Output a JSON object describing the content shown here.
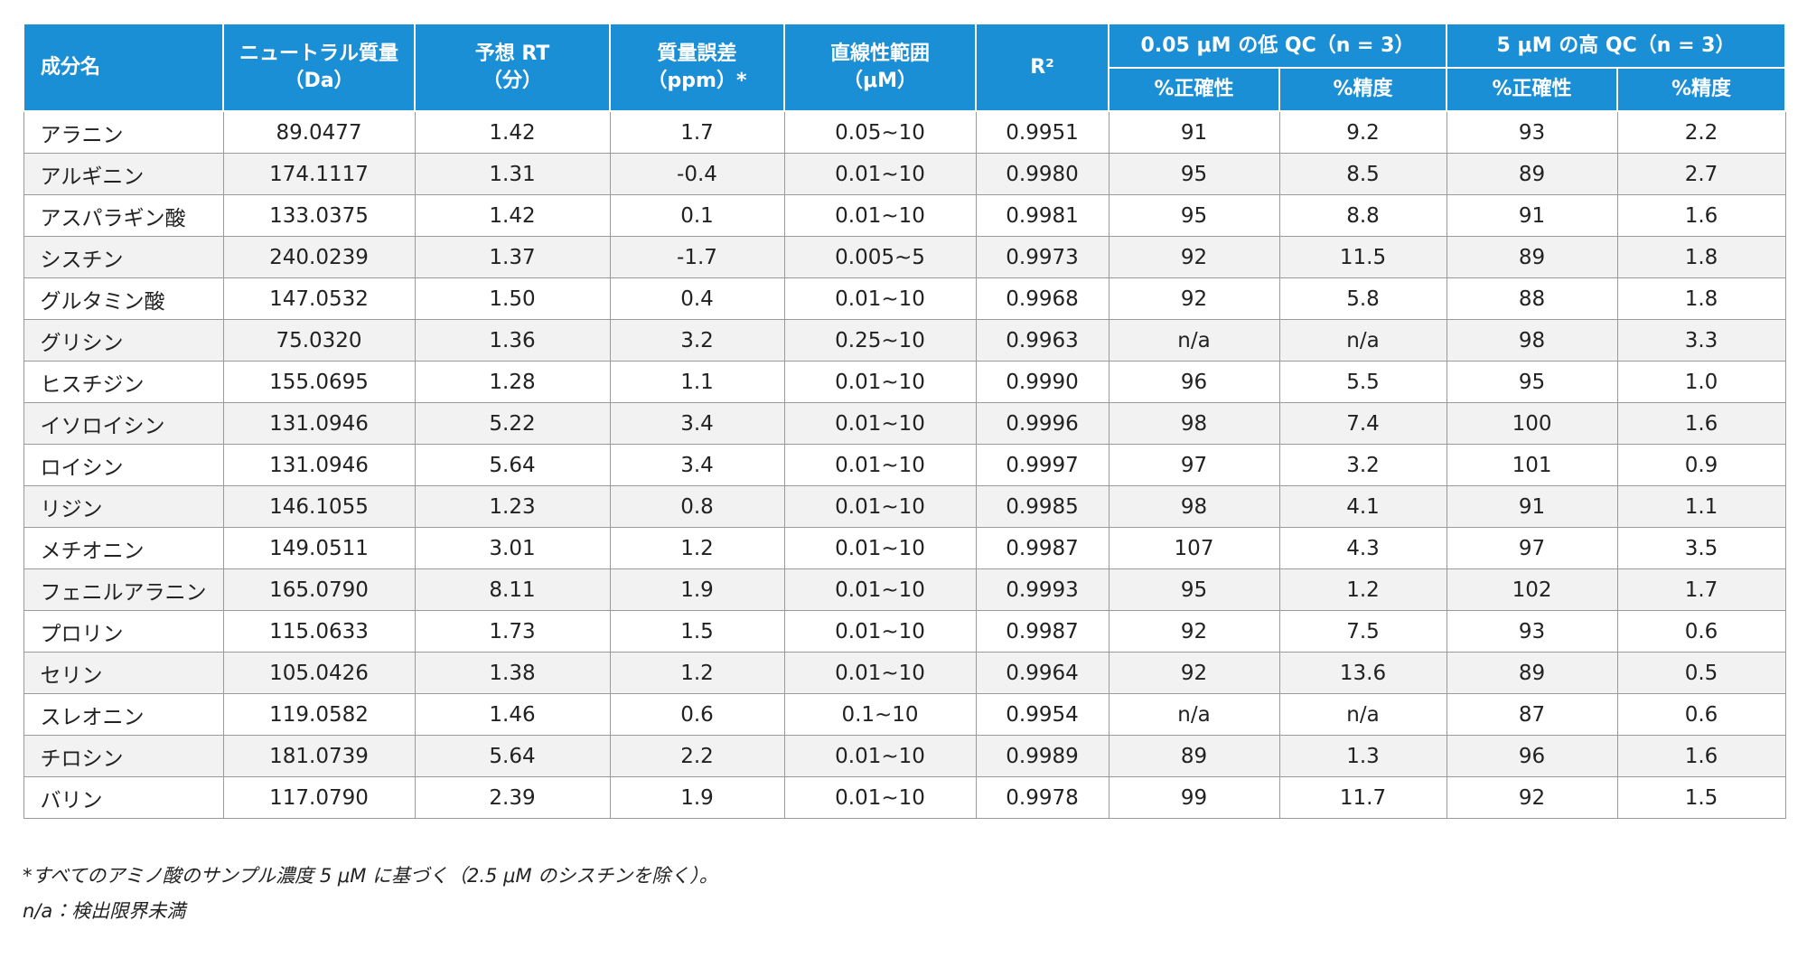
{
  "table": {
    "header": {
      "columns": [
        {
          "lines": [
            "成分名"
          ]
        },
        {
          "lines": [
            "ニュートラル質量",
            "（Da）"
          ]
        },
        {
          "lines": [
            "予想 RT",
            "（分）"
          ]
        },
        {
          "lines": [
            "質量誤差",
            "（ppm）*"
          ]
        },
        {
          "lines": [
            "直線性範囲",
            "（μM）"
          ]
        },
        {
          "lines": [
            "R²"
          ]
        },
        {
          "lines": [
            "0.05 μM の低 QC（n = 3）"
          ]
        },
        {
          "lines": [
            "5 μM の高 QC（n = 3）"
          ]
        }
      ],
      "subcolumns": [
        "%正確性",
        "%精度",
        "%正確性",
        "%精度"
      ]
    },
    "rows": [
      [
        "アラニン",
        "89.0477",
        "1.42",
        "1.7",
        "0.05~10",
        "0.9951",
        "91",
        "9.2",
        "93",
        "2.2"
      ],
      [
        "アルギニン",
        "174.1117",
        "1.31",
        "-0.4",
        "0.01~10",
        "0.9980",
        "95",
        "8.5",
        "89",
        "2.7"
      ],
      [
        "アスパラギン酸",
        "133.0375",
        "1.42",
        "0.1",
        "0.01~10",
        "0.9981",
        "95",
        "8.8",
        "91",
        "1.6"
      ],
      [
        "シスチン",
        "240.0239",
        "1.37",
        "-1.7",
        "0.005~5",
        "0.9973",
        "92",
        "11.5",
        "89",
        "1.8"
      ],
      [
        "グルタミン酸",
        "147.0532",
        "1.50",
        "0.4",
        "0.01~10",
        "0.9968",
        "92",
        "5.8",
        "88",
        "1.8"
      ],
      [
        "グリシン",
        "75.0320",
        "1.36",
        "3.2",
        "0.25~10",
        "0.9963",
        "n/a",
        "n/a",
        "98",
        "3.3"
      ],
      [
        "ヒスチジン",
        "155.0695",
        "1.28",
        "1.1",
        "0.01~10",
        "0.9990",
        "96",
        "5.5",
        "95",
        "1.0"
      ],
      [
        "イソロイシン",
        "131.0946",
        "5.22",
        "3.4",
        "0.01~10",
        "0.9996",
        "98",
        "7.4",
        "100",
        "1.6"
      ],
      [
        "ロイシン",
        "131.0946",
        "5.64",
        "3.4",
        "0.01~10",
        "0.9997",
        "97",
        "3.2",
        "101",
        "0.9"
      ],
      [
        "リジン",
        "146.1055",
        "1.23",
        "0.8",
        "0.01~10",
        "0.9985",
        "98",
        "4.1",
        "91",
        "1.1"
      ],
      [
        "メチオニン",
        "149.0511",
        "3.01",
        "1.2",
        "0.01~10",
        "0.9987",
        "107",
        "4.3",
        "97",
        "3.5"
      ],
      [
        "フェニルアラニン",
        "165.0790",
        "8.11",
        "1.9",
        "0.01~10",
        "0.9993",
        "95",
        "1.2",
        "102",
        "1.7"
      ],
      [
        "プロリン",
        "115.0633",
        "1.73",
        "1.5",
        "0.01~10",
        "0.9987",
        "92",
        "7.5",
        "93",
        "0.6"
      ],
      [
        "セリン",
        "105.0426",
        "1.38",
        "1.2",
        "0.01~10",
        "0.9964",
        "92",
        "13.6",
        "89",
        "0.5"
      ],
      [
        "スレオニン",
        "119.0582",
        "1.46",
        "0.6",
        "0.1~10",
        "0.9954",
        "n/a",
        "n/a",
        "87",
        "0.6"
      ],
      [
        "チロシン",
        "181.0739",
        "5.64",
        "2.2",
        "0.01~10",
        "0.9989",
        "89",
        "1.3",
        "96",
        "1.6"
      ],
      [
        "バリン",
        "117.0790",
        "2.39",
        "1.9",
        "0.01~10",
        "0.9978",
        "99",
        "11.7",
        "92",
        "1.5"
      ]
    ]
  },
  "notes": [
    "*すべてのアミノ酸のサンプル濃度 5 μM に基づく（2.5 μM のシスチンを除く）。",
    "n/a：検出限界未満"
  ]
}
